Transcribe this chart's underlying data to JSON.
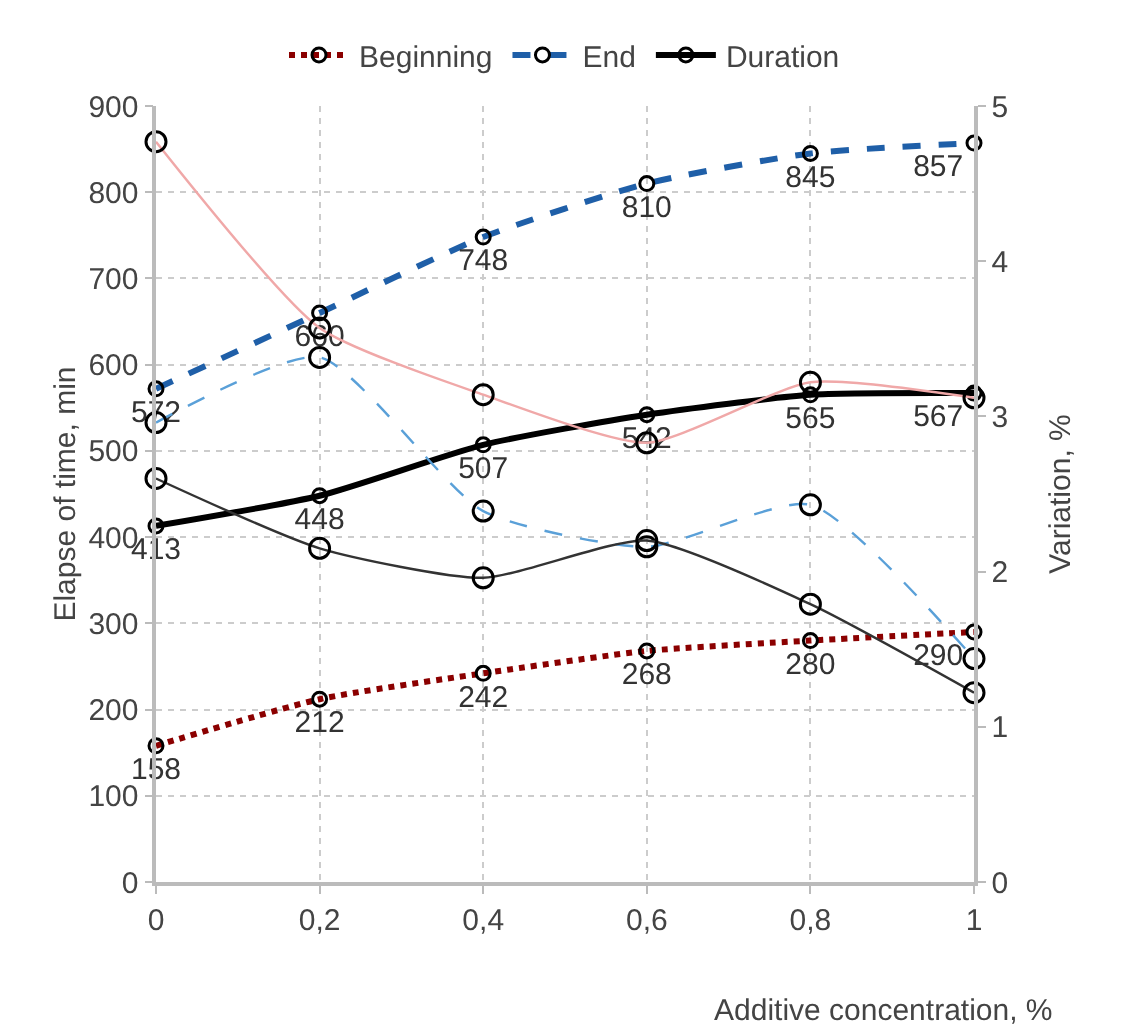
{
  "chart_data": {
    "type": "line",
    "xlabel": "Additive concentration, %",
    "ylabel": "Elapse of time, min",
    "y2label": "Variation, %",
    "x": [
      0,
      0.2,
      0.4,
      0.6,
      0.8,
      1
    ],
    "xlim": [
      0,
      1
    ],
    "xticks": [
      0,
      {
        "value": 0.2,
        "label": "0,2"
      },
      {
        "value": 0.4,
        "label": "0,4"
      },
      {
        "value": 0.6,
        "label": "0,6"
      },
      {
        "value": 0.8,
        "label": "0,8"
      },
      1
    ],
    "ylim": [
      0,
      900
    ],
    "yticks": [
      0,
      100,
      200,
      300,
      400,
      500,
      600,
      700,
      800,
      900
    ],
    "y2lim": [
      0,
      5
    ],
    "y2ticks": [
      0,
      1,
      2,
      3,
      4,
      5
    ],
    "grid": true,
    "legend": "top",
    "marker": "circle",
    "series": [
      {
        "name": "Beginning",
        "color": "#8b0000",
        "line_style": "dotted",
        "values": [
          158,
          212,
          242,
          268,
          280,
          290
        ],
        "value_labels": [
          "158",
          "212",
          "242",
          "268",
          "280",
          "290"
        ]
      },
      {
        "name": "End",
        "color": "#1f5fa8",
        "line_style": "dashed",
        "values": [
          572,
          660,
          748,
          810,
          845,
          857
        ],
        "value_labels": [
          "572",
          "660",
          "748",
          "810",
          "845",
          "857"
        ]
      },
      {
        "name": "Duration",
        "color": "#000000",
        "line_style": "solid",
        "values": [
          413,
          448,
          507,
          542,
          565,
          567
        ],
        "value_labels": [
          "413",
          "448",
          "507",
          "542",
          "565",
          "567"
        ]
      },
      {
        "color": "#f0a8a8",
        "line_style": "solid",
        "axis": "y2",
        "values": [
          4.77,
          3.57,
          3.14,
          2.83,
          3.22,
          3.12
        ]
      },
      {
        "color": "#5aa0d8",
        "line_style": "dashed",
        "axis": "y2",
        "values": [
          2.96,
          3.38,
          2.39,
          2.16,
          2.43,
          1.44
        ]
      },
      {
        "color": "#333333",
        "line_style": "solid",
        "axis": "y2",
        "values": [
          2.6,
          2.15,
          1.96,
          2.2,
          1.79,
          1.22
        ]
      }
    ]
  }
}
